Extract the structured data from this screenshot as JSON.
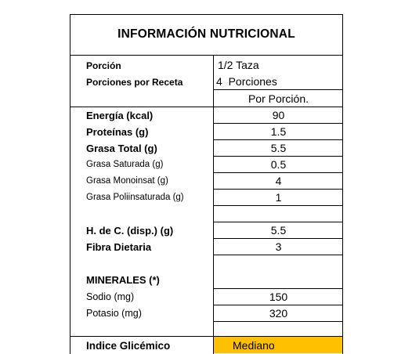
{
  "title": "INFORMACIÓN NUTRICIONAL",
  "serving": {
    "portion_label": "Porción",
    "portion_value": "1/2 Taza",
    "servings_label": "Porciones por Receta",
    "servings_value": "4  Porciones",
    "per_portion_header": "Por Porción."
  },
  "nutrients": [
    {
      "label": "Energía (kcal)",
      "value": "90"
    },
    {
      "label": "Proteínas (g)",
      "value": "1.5"
    },
    {
      "label": "Grasa Total (g)",
      "value": "5.5"
    },
    {
      "label": "Grasa Saturada (g)",
      "value": "0.5"
    },
    {
      "label": "Grasa Monoinsat (g)",
      "value": "4"
    },
    {
      "label": "Grasa Poliinsaturada (g)",
      "value": "1"
    },
    {
      "label": "H. de C. (disp.) (g)",
      "value": "5.5"
    },
    {
      "label": "Fibra Dietaria",
      "value": "3"
    }
  ],
  "minerals": {
    "header": "MINERALES (*)",
    "items": [
      {
        "label": "Sodio (mg)",
        "value": "150"
      },
      {
        "label": "Potasio (mg)",
        "value": "320"
      }
    ]
  },
  "glycemic": {
    "label": "Indice Glicémico",
    "value": "Mediano",
    "highlight_color": "#FFC000"
  }
}
